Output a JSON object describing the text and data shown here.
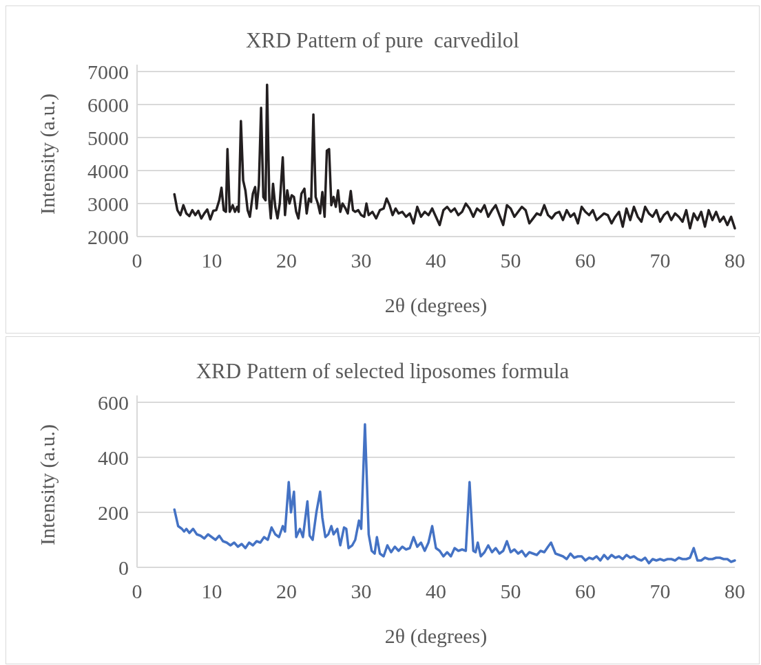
{
  "chart_data": [
    {
      "type": "line",
      "title": "XRD Pattern of pure  carvedilol",
      "xlabel": "2θ (degrees)",
      "ylabel": "Intensity (a.u.)",
      "xlim": [
        0,
        80
      ],
      "xticks": [
        0,
        10,
        20,
        30,
        40,
        50,
        60,
        70,
        80
      ],
      "ylim": [
        2000,
        7000
      ],
      "yticks": [
        2000,
        3000,
        4000,
        5000,
        6000,
        7000
      ],
      "grid": "y",
      "series": [
        {
          "color": "#231f20",
          "x": [
            5,
            5.4,
            5.8,
            6.2,
            6.6,
            7,
            7.4,
            7.8,
            8.2,
            8.6,
            9,
            9.4,
            9.8,
            10.2,
            10.6,
            11,
            11.3,
            11.6,
            11.9,
            12.1,
            12.4,
            12.8,
            13.1,
            13.4,
            13.6,
            13.9,
            14.2,
            14.5,
            14.8,
            15.1,
            15.5,
            15.8,
            16,
            16.3,
            16.6,
            16.9,
            17.2,
            17.4,
            17.7,
            17.9,
            18.2,
            18.5,
            18.8,
            19.1,
            19.5,
            19.8,
            20.1,
            20.4,
            20.7,
            21,
            21.3,
            21.6,
            22,
            22.4,
            22.7,
            23,
            23.3,
            23.6,
            23.9,
            24.2,
            24.5,
            24.8,
            25.1,
            25.4,
            25.7,
            26,
            26.3,
            26.6,
            26.9,
            27.2,
            27.5,
            27.9,
            28.2,
            28.6,
            28.9,
            29.2,
            29.6,
            30,
            30.4,
            30.7,
            31,
            31.5,
            32,
            32.5,
            33,
            33.4,
            33.8,
            34.2,
            34.6,
            35,
            35.5,
            36,
            36.5,
            37,
            37.5,
            38,
            38.5,
            39,
            39.5,
            40,
            40.5,
            41,
            41.5,
            42,
            42.5,
            43,
            43.5,
            44,
            44.5,
            45,
            45.5,
            46,
            46.5,
            47,
            47.5,
            48,
            48.5,
            49,
            49.5,
            50,
            50.5,
            51,
            51.5,
            52,
            52.5,
            53,
            53.5,
            54,
            54.5,
            55,
            55.5,
            56,
            56.5,
            57,
            57.5,
            58,
            58.5,
            59,
            59.5,
            60,
            60.5,
            61,
            61.5,
            62,
            62.5,
            63,
            63.5,
            64,
            64.5,
            65,
            65.5,
            66,
            66.5,
            67,
            67.5,
            68,
            68.5,
            69,
            69.5,
            70,
            70.5,
            71,
            71.5,
            72,
            72.5,
            73,
            73.5,
            74,
            74.5,
            75,
            75.5,
            76,
            76.5,
            77,
            77.5,
            78,
            78.5,
            79,
            79.5,
            80
          ],
          "values": [
            3280,
            2800,
            2650,
            2950,
            2700,
            2620,
            2800,
            2650,
            2780,
            2550,
            2700,
            2820,
            2520,
            2780,
            2800,
            3100,
            3480,
            2800,
            2750,
            4650,
            2750,
            2950,
            2750,
            2900,
            2750,
            5500,
            3700,
            3400,
            2800,
            2600,
            3300,
            3500,
            2850,
            3550,
            5900,
            3200,
            3100,
            6600,
            3100,
            2550,
            3600,
            2900,
            2550,
            3000,
            4400,
            2650,
            3400,
            3000,
            3250,
            3200,
            2750,
            2550,
            3300,
            3450,
            2700,
            3150,
            3050,
            5700,
            3200,
            3000,
            2700,
            3350,
            2600,
            4600,
            4650,
            2950,
            3200,
            2900,
            3400,
            2750,
            3000,
            2850,
            2700,
            3380,
            2800,
            2750,
            2800,
            2650,
            2600,
            3000,
            2650,
            2750,
            2550,
            2800,
            2850,
            3150,
            2950,
            2650,
            2850,
            2700,
            2750,
            2600,
            2700,
            2400,
            2900,
            2600,
            2750,
            2650,
            2850,
            2600,
            2350,
            2800,
            2900,
            2750,
            2850,
            2650,
            2750,
            3000,
            2850,
            2600,
            2850,
            2750,
            2950,
            2600,
            2800,
            2950,
            2650,
            2350,
            2950,
            2850,
            2600,
            2750,
            2900,
            2800,
            2400,
            2550,
            2700,
            2650,
            2950,
            2650,
            2550,
            2700,
            2750,
            2500,
            2800,
            2600,
            2700,
            2400,
            2900,
            2750,
            2650,
            2800,
            2500,
            2600,
            2700,
            2650,
            2400,
            2600,
            2750,
            2300,
            2850,
            2500,
            2900,
            2600,
            2450,
            2900,
            2700,
            2600,
            2800,
            2450,
            2650,
            2750,
            2500,
            2700,
            2600,
            2450,
            2800,
            2250,
            2700,
            2500,
            2750,
            2300,
            2800,
            2500,
            2750,
            2450,
            2600,
            2350,
            2600,
            2250
          ]
        }
      ]
    },
    {
      "type": "line",
      "title": "XRD Pattern of selected liposomes formula",
      "xlabel": "2θ (degrees)",
      "ylabel": "Intensity (a.u.)",
      "xlim": [
        0,
        80
      ],
      "xticks": [
        0,
        10,
        20,
        30,
        40,
        50,
        60,
        70,
        80
      ],
      "ylim": [
        0,
        600
      ],
      "yticks": [
        0,
        200,
        400,
        600
      ],
      "grid": "y",
      "series": [
        {
          "color": "#4472c4",
          "x": [
            5,
            5.5,
            6,
            6.3,
            6.6,
            7,
            7.5,
            8,
            8.5,
            9,
            9.5,
            10,
            10.5,
            11,
            11.5,
            12,
            12.5,
            13,
            13.5,
            14,
            14.5,
            15,
            15.5,
            16,
            16.5,
            17,
            17.5,
            18,
            18.5,
            19,
            19.5,
            19.8,
            20.3,
            20.6,
            21,
            21.3,
            21.8,
            22.2,
            22.8,
            23.1,
            23.5,
            24,
            24.5,
            24.8,
            25.2,
            25.6,
            26,
            26.3,
            26.8,
            27.2,
            27.7,
            28,
            28.3,
            28.8,
            29.2,
            29.7,
            30,
            30.5,
            31,
            31.4,
            31.8,
            32.1,
            32.5,
            33,
            33.5,
            34,
            34.5,
            35,
            35.5,
            36,
            36.5,
            37,
            37.5,
            38,
            38.5,
            39,
            39.5,
            40,
            40.5,
            41,
            41.5,
            42,
            42.5,
            43,
            43.5,
            44,
            44.5,
            45,
            45.3,
            45.6,
            46,
            46.5,
            47,
            47.5,
            48,
            48.5,
            49,
            49.5,
            50,
            50.5,
            51,
            51.5,
            52,
            52.5,
            53,
            53.5,
            54,
            54.5,
            55,
            55.4,
            56,
            56.5,
            57,
            57.5,
            58,
            58.5,
            59,
            59.5,
            60,
            60.5,
            61,
            61.5,
            62,
            62.5,
            63,
            63.5,
            64,
            64.5,
            65,
            65.5,
            66,
            66.5,
            67,
            67.5,
            68,
            68.5,
            69,
            69.5,
            70,
            70.5,
            71,
            71.5,
            72,
            72.5,
            73,
            73.5,
            74,
            74.5,
            75,
            75.5,
            76,
            76.5,
            77,
            77.5,
            78,
            78.5,
            79,
            79.5,
            80
          ],
          "values": [
            210,
            150,
            140,
            130,
            140,
            125,
            140,
            120,
            115,
            105,
            120,
            110,
            100,
            115,
            95,
            90,
            80,
            90,
            75,
            85,
            70,
            90,
            80,
            95,
            90,
            110,
            100,
            145,
            120,
            110,
            150,
            130,
            310,
            200,
            275,
            110,
            140,
            110,
            240,
            115,
            100,
            200,
            275,
            180,
            110,
            120,
            150,
            120,
            140,
            80,
            145,
            140,
            70,
            80,
            100,
            170,
            140,
            520,
            120,
            60,
            50,
            110,
            50,
            40,
            80,
            55,
            75,
            60,
            75,
            65,
            70,
            110,
            75,
            90,
            60,
            90,
            150,
            70,
            60,
            40,
            55,
            40,
            70,
            60,
            65,
            60,
            310,
            60,
            55,
            90,
            40,
            55,
            80,
            55,
            70,
            50,
            60,
            95,
            55,
            65,
            50,
            60,
            40,
            55,
            50,
            45,
            60,
            55,
            75,
            90,
            50,
            45,
            40,
            30,
            50,
            35,
            40,
            40,
            25,
            35,
            30,
            40,
            25,
            45,
            30,
            45,
            35,
            40,
            30,
            45,
            35,
            40,
            30,
            25,
            35,
            15,
            30,
            25,
            30,
            25,
            30,
            30,
            25,
            35,
            30,
            30,
            35,
            70,
            25,
            25,
            35,
            30,
            30,
            35,
            35,
            30,
            30,
            20,
            25
          ]
        }
      ]
    }
  ]
}
